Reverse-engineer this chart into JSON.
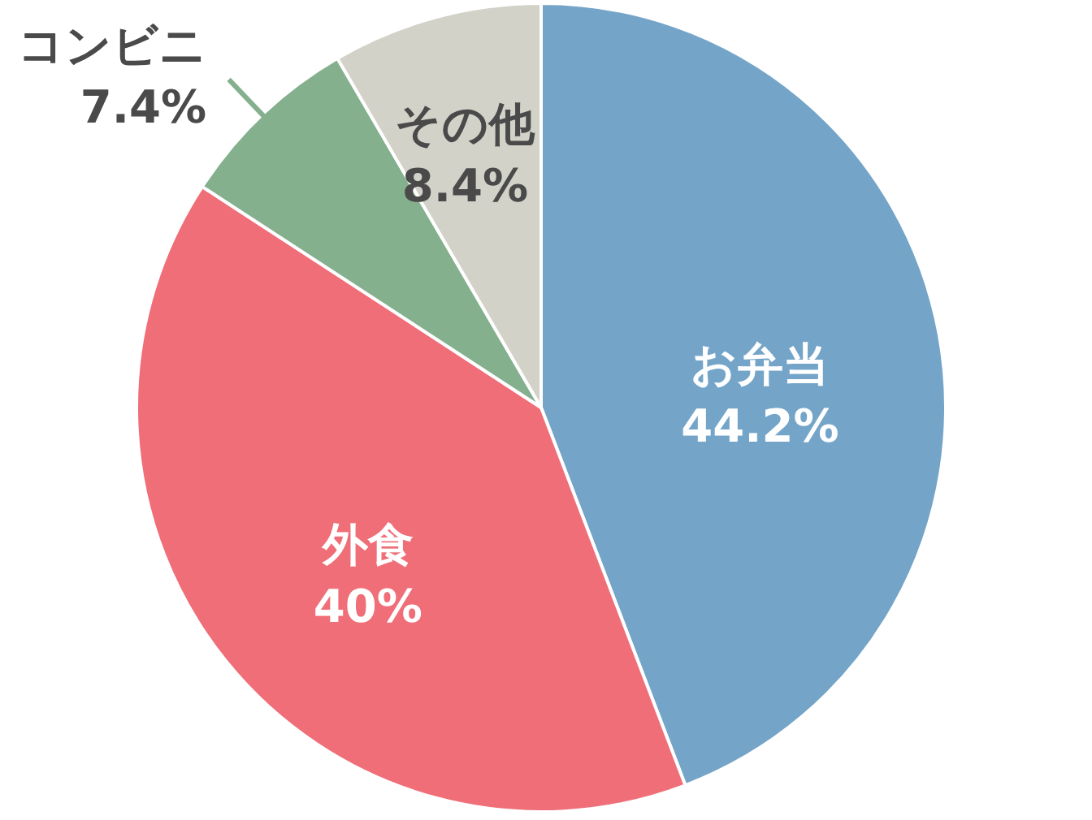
{
  "chart_data": {
    "type": "pie",
    "categories": [
      "お弁当",
      "外食",
      "コンビニ",
      "その他"
    ],
    "values": [
      44.2,
      40,
      7.4,
      8.4
    ],
    "colors": [
      "#74a5c9",
      "#ef6e78",
      "#84b08e",
      "#d3d2c9"
    ],
    "value_labels": [
      "44.2%",
      "40%",
      "7.4%",
      "8.4%"
    ]
  }
}
